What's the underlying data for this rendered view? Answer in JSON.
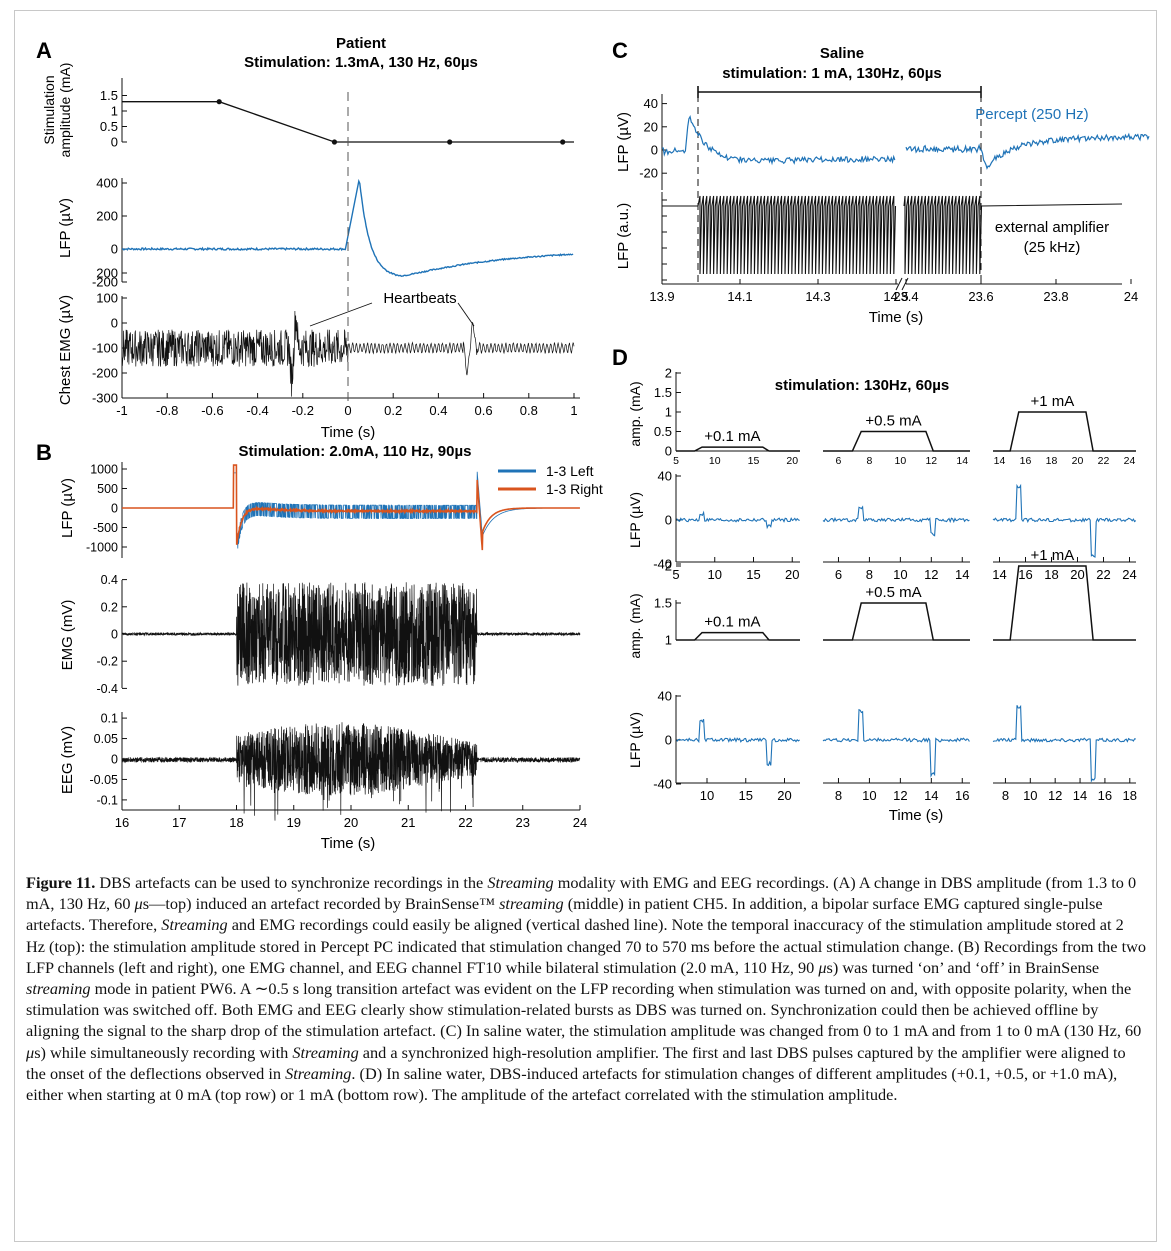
{
  "figure": {
    "panel_a": {
      "letter": "A",
      "title_line1": "Patient",
      "title_line2": "Stimulation: 1.3mA, 130 Hz, 60µs",
      "annotation": "Heartbeats",
      "x_axis_label": "Time (s)",
      "x_ticks": [
        "-1",
        "-0.8",
        "-0.6",
        "-0.4",
        "-0.2",
        "0",
        "0.2",
        "0.4",
        "0.6",
        "0.8",
        "1"
      ],
      "stim": {
        "ylabel_line1": "Stimulation",
        "ylabel_line2": "amplitude (mA)",
        "y_ticks": [
          "1.5",
          "1",
          "0.5",
          "0"
        ],
        "x": [
          -1,
          -0.57,
          0.45,
          0.95,
          1
        ],
        "y": [
          1.3,
          1.3,
          0,
          0,
          0
        ],
        "marker_x": [
          -0.57,
          -0.06,
          0.45,
          0.95
        ],
        "marker_y": [
          1.3,
          0,
          0,
          0
        ]
      },
      "lfp": {
        "ylabel": "LFP (µV)",
        "y_ticks": [
          "400",
          "200",
          "0",
          "-200"
        ]
      },
      "emg": {
        "ylabel": "Chest EMG (µV)",
        "y_ticks": [
          "200",
          "100",
          "0",
          "-100",
          "-200",
          "-300"
        ]
      }
    },
    "panel_b": {
      "letter": "B",
      "title": "Stimulation: 2.0mA, 110 Hz, 90µs",
      "x_axis_label": "Time (s)",
      "x_ticks": [
        "16",
        "17",
        "18",
        "19",
        "20",
        "21",
        "22",
        "23",
        "24"
      ],
      "legend": [
        "1-3 Left",
        "1-3 Right"
      ],
      "lfp": {
        "ylabel": "LFP (µV)",
        "y_ticks": [
          "1000",
          "500",
          "0",
          "-500",
          "-1000"
        ]
      },
      "emg": {
        "ylabel": "EMG (mV)",
        "y_ticks": [
          "0.4",
          "0.2",
          "0",
          "-0.2",
          "-0.4"
        ]
      },
      "eeg": {
        "ylabel": "EEG (mV)",
        "y_ticks": [
          "0.1",
          "0.05",
          "0",
          "-0.05",
          "-0.1"
        ]
      }
    },
    "panel_c": {
      "letter": "C",
      "title_line1": "Saline",
      "title_line2": "stimulation: 1 mA, 130Hz, 60µs",
      "percept_label": "Percept (250 Hz)",
      "amp_label_line1": "external amplifier",
      "amp_label_line2": "(25 kHz)",
      "x_axis_label": "Time (s)",
      "x_ticks": [
        "13.9",
        "14.1",
        "14.3",
        "14.5",
        "23.4",
        "23.6",
        "23.8",
        "24"
      ],
      "lfp": {
        "ylabel": "LFP (µV)",
        "y_ticks": [
          "40",
          "20",
          "0",
          "-20"
        ]
      },
      "amp": {
        "ylabel": "LFP (a.u.)"
      }
    },
    "panel_d": {
      "letter": "D",
      "title": "stimulation: 130Hz, 60µs",
      "x_axis_label": "Time (s)",
      "amp_ylabel": "amp. (mA)",
      "lfp_ylabel": "LFP (µV)",
      "top_amp_y_ticks": [
        "2",
        "1.5",
        "1",
        "0.5",
        "0"
      ],
      "bottom_amp_y_ticks": [
        "2",
        "1.5",
        "1"
      ],
      "lfp_y_ticks": [
        "40",
        "0",
        "-40"
      ],
      "top_labels": [
        "+0.1 mA",
        "+0.5 mA",
        "+1 mA"
      ],
      "bottom_labels": [
        "+0.1 mA",
        "+0.5 mA",
        "+1 mA"
      ],
      "top_x_ticks_1": [
        "5",
        "10",
        "15",
        "20"
      ],
      "top_x_ticks_2": [
        "6",
        "8",
        "10",
        "12",
        "14"
      ],
      "top_x_ticks_3": [
        "14",
        "16",
        "18",
        "20",
        "22",
        "24"
      ],
      "bottom_x_ticks_1": [
        "10",
        "15",
        "20"
      ],
      "bottom_x_ticks_2": [
        "8",
        "10",
        "12",
        "14",
        "16"
      ],
      "bottom_x_ticks_3": [
        "8",
        "10",
        "12",
        "14",
        "16",
        "18"
      ]
    }
  },
  "colors": {
    "lfp_blue": "#1f73b7",
    "right_orange": "#d9541e",
    "black": "#111111"
  },
  "caption": {
    "label": "Figure 11.",
    "p1": " DBS artefacts can be used to synchronize recordings in the ",
    "i1": "Streaming",
    "p2": " modality with EMG and EEG recordings. (A) A change in DBS amplitude (from 1.3 to 0 mA, 130 Hz, 60 ",
    "mu1": "μ",
    "p3": "s—top) induced an artefact recorded by BrainSense™ ",
    "i2": "streaming",
    "p4": " (middle) in patient CH5. In addition, a bipolar surface EMG captured single-pulse artefacts. Therefore, ",
    "i3": "Streaming",
    "p5": " and EMG recordings could easily be aligned (vertical dashed line). Note the temporal inaccuracy of the stimulation amplitude stored at 2 Hz (top): the stimulation amplitude stored in Percept PC indicated that stimulation changed 70 to 570 ms before the actual stimulation change. (B) Recordings from the two LFP channels (left and right), one EMG channel, and EEG channel FT10 while bilateral stimulation (2.0 mA, 110 Hz, 90 ",
    "mu2": "μ",
    "p6": "s) was turned ‘on’ and ‘off’ in BrainSense ",
    "i4": "streaming",
    "p7": " mode in patient PW6. A ∼0.5 s long transition artefact was evident on the LFP recording when stimulation was turned on and, with opposite polarity, when the stimulation was switched off. Both EMG and EEG clearly show stimulation-related bursts as DBS was turned on. Synchronization could then be achieved offline by aligning the signal to the sharp drop of the stimulation artefact. (C) In saline water, the stimulation amplitude was changed from 0 to 1 mA and from 1 to 0 mA (130 Hz, 60 ",
    "mu3": "μ",
    "p8": "s) while simultaneously recording with ",
    "i5": "Streaming",
    "p9": " and a synchronized high-resolution amplifier. The first and last DBS pulses captured by the amplifier were aligned to the onset of the deflections observed in ",
    "i6": "Streaming",
    "p10": ". (D) In saline water, DBS-induced artefacts for stimulation changes of different amplitudes (+0.1, +0.5, or +1.0 mA), either when starting at 0 mA (top row) or 1 mA (bottom row). The amplitude of the artefact correlated with the stimulation amplitude."
  }
}
